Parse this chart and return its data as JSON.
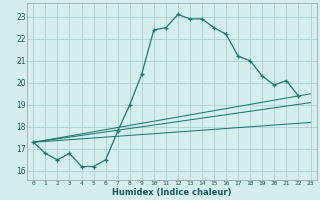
{
  "xlabel": "Humidex (Indice chaleur)",
  "bg_color": "#d4eeee",
  "grid_color": "#b0d4d4",
  "line_color": "#1a7a6e",
  "xlim": [
    -0.5,
    23.5
  ],
  "ylim": [
    15.6,
    23.6
  ],
  "yticks": [
    16,
    17,
    18,
    19,
    20,
    21,
    22,
    23
  ],
  "xticks": [
    0,
    1,
    2,
    3,
    4,
    5,
    6,
    7,
    8,
    9,
    10,
    11,
    12,
    13,
    14,
    15,
    16,
    17,
    18,
    19,
    20,
    21,
    22,
    23
  ],
  "main_curve_x": [
    0,
    1,
    2,
    3,
    4,
    5,
    6,
    7,
    8,
    9,
    10,
    11,
    12,
    13,
    14,
    15,
    16,
    17,
    18,
    19,
    20,
    21,
    22
  ],
  "main_curve_y": [
    17.3,
    16.8,
    16.5,
    16.8,
    16.2,
    16.2,
    16.5,
    17.8,
    19.0,
    20.4,
    22.4,
    22.5,
    23.1,
    22.9,
    22.9,
    22.5,
    22.2,
    21.2,
    21.0,
    20.3,
    19.9,
    20.1,
    19.4
  ],
  "trend_lines": [
    {
      "x": [
        0,
        23
      ],
      "y": [
        17.3,
        19.5
      ]
    },
    {
      "x": [
        0,
        23
      ],
      "y": [
        17.3,
        19.1
      ]
    },
    {
      "x": [
        0,
        23
      ],
      "y": [
        17.3,
        18.2
      ]
    }
  ]
}
